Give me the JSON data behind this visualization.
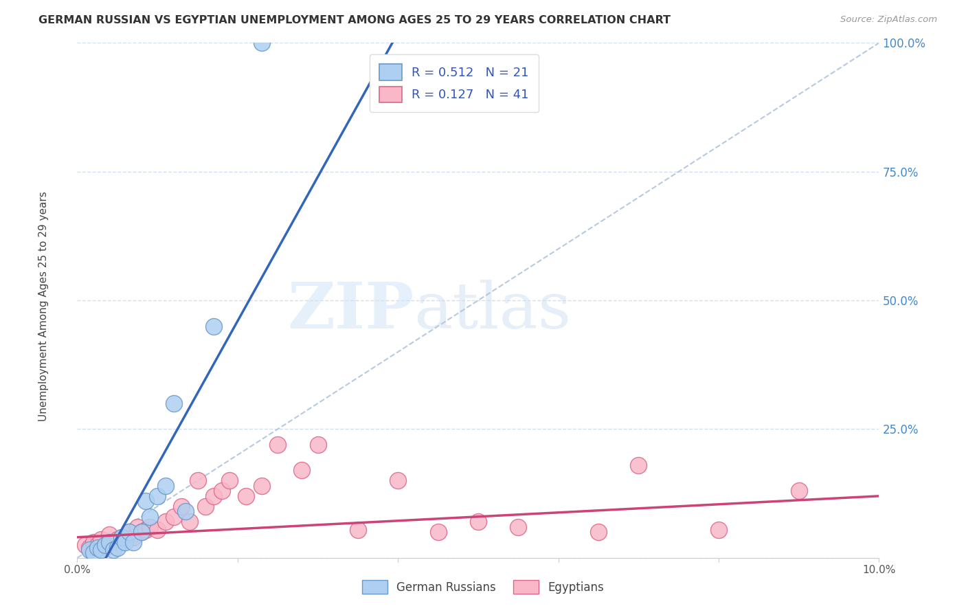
{
  "title": "GERMAN RUSSIAN VS EGYPTIAN UNEMPLOYMENT AMONG AGES 25 TO 29 YEARS CORRELATION CHART",
  "source": "Source: ZipAtlas.com",
  "ylabel": "Unemployment Among Ages 25 to 29 years",
  "xmin": 0.0,
  "xmax": 10.0,
  "ymin": 0.0,
  "ymax": 100.0,
  "watermark_zip": "ZIP",
  "watermark_atlas": "atlas",
  "blue_color": "#aecff0",
  "pink_color": "#f9b8c8",
  "blue_edge_color": "#6699cc",
  "pink_edge_color": "#dd6688",
  "blue_line_color": "#3366bb",
  "pink_line_color": "#cc4477",
  "legend_label_blue": "German Russians",
  "legend_label_pink": "Egyptians",
  "legend_r_blue": "R = 0.512",
  "legend_n_blue": "N = 21",
  "legend_r_pink": "R = 0.127",
  "legend_n_pink": "N = 41",
  "gr_x": [
    0.15,
    0.2,
    0.25,
    0.3,
    0.35,
    0.4,
    0.45,
    0.5,
    0.55,
    0.6,
    0.65,
    0.7,
    0.8,
    0.85,
    0.9,
    1.0,
    1.1,
    1.2,
    1.35,
    1.7,
    2.3
  ],
  "gr_y": [
    1.5,
    1.0,
    2.0,
    1.5,
    2.5,
    3.0,
    1.5,
    2.0,
    4.0,
    3.0,
    5.0,
    3.0,
    5.0,
    11.0,
    8.0,
    12.0,
    14.0,
    30.0,
    9.0,
    45.0,
    100.0
  ],
  "eg_x": [
    0.1,
    0.15,
    0.2,
    0.25,
    0.3,
    0.35,
    0.4,
    0.45,
    0.5,
    0.55,
    0.6,
    0.65,
    0.7,
    0.75,
    0.8,
    0.85,
    0.9,
    1.0,
    1.1,
    1.2,
    1.3,
    1.4,
    1.5,
    1.6,
    1.7,
    1.8,
    1.9,
    2.1,
    2.3,
    2.5,
    2.8,
    3.0,
    3.5,
    4.0,
    4.5,
    5.0,
    5.5,
    6.5,
    7.0,
    8.0,
    9.0
  ],
  "eg_y": [
    2.5,
    2.0,
    3.0,
    2.5,
    3.5,
    2.0,
    4.5,
    3.0,
    3.5,
    4.0,
    3.5,
    5.0,
    4.0,
    6.0,
    5.0,
    5.5,
    6.0,
    5.5,
    7.0,
    8.0,
    10.0,
    7.0,
    15.0,
    10.0,
    12.0,
    13.0,
    15.0,
    12.0,
    14.0,
    22.0,
    17.0,
    22.0,
    5.5,
    15.0,
    5.0,
    7.0,
    6.0,
    5.0,
    18.0,
    5.5,
    13.0
  ],
  "ref_line_color": "#b0c4de",
  "grid_color": "#c8d8f0",
  "ytick_color": "#4488cc"
}
